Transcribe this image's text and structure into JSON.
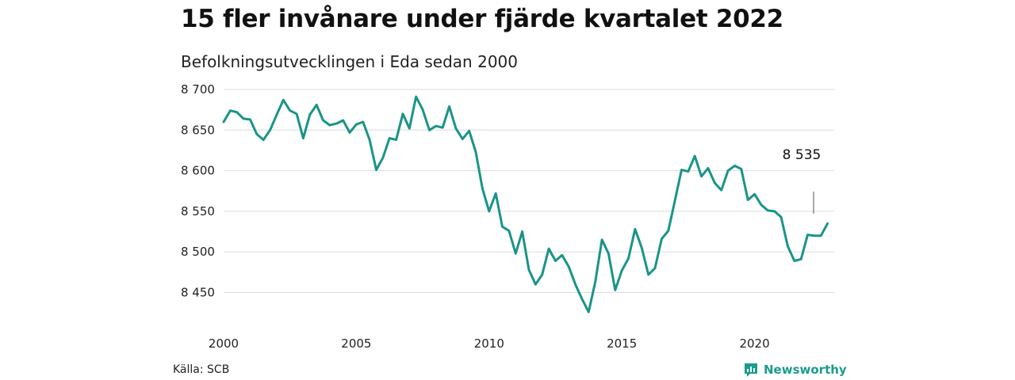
{
  "title": "15 fler invånare under fjärde kvartalet 2022",
  "subtitle": "Befolkningsutvecklingen i Eda sedan 2000",
  "source": "Källa: SCB",
  "brand": {
    "name": "Newsworthy",
    "icon": "newsworthy-logo-icon",
    "color": "#1a9c8c"
  },
  "chart_data": {
    "type": "line",
    "color": "#1a9488",
    "grid": true,
    "xlim": [
      2000,
      2023
    ],
    "ylim": [
      8430,
      8700
    ],
    "x_ticks": [
      2000,
      2005,
      2010,
      2015,
      2020
    ],
    "x_tick_labels": [
      "2000",
      "2005",
      "2010",
      "2015",
      "2020"
    ],
    "y_ticks": [
      8450,
      8500,
      8550,
      8600,
      8650,
      8700
    ],
    "y_tick_labels": [
      "8 450",
      "8 500",
      "8 550",
      "8 600",
      "8 650",
      "8 700"
    ],
    "end_label": "8 535",
    "series": [
      {
        "x": [
          "2000 Q1",
          "2000 Q2",
          "2000 Q3",
          "2000 Q4",
          "2001 Q1",
          "2001 Q2",
          "2001 Q3",
          "2001 Q4",
          "2002 Q1",
          "2002 Q2",
          "2002 Q3",
          "2002 Q4",
          "2003 Q1",
          "2003 Q2",
          "2003 Q3",
          "2003 Q4",
          "2004 Q1",
          "2004 Q2",
          "2004 Q3",
          "2004 Q4",
          "2005 Q1",
          "2005 Q2",
          "2005 Q3",
          "2005 Q4",
          "2006 Q1",
          "2006 Q2",
          "2006 Q3",
          "2006 Q4",
          "2007 Q1",
          "2007 Q2",
          "2007 Q3",
          "2007 Q4",
          "2008 Q1",
          "2008 Q2",
          "2008 Q3",
          "2008 Q4",
          "2009 Q1",
          "2009 Q2",
          "2009 Q3",
          "2009 Q4",
          "2010 Q1",
          "2010 Q2",
          "2010 Q3",
          "2010 Q4",
          "2011 Q1",
          "2011 Q2",
          "2011 Q3",
          "2011 Q4",
          "2012 Q1",
          "2012 Q2",
          "2012 Q3",
          "2012 Q4",
          "2013 Q1",
          "2013 Q2",
          "2013 Q3",
          "2013 Q4",
          "2014 Q1",
          "2014 Q2",
          "2014 Q3",
          "2014 Q4",
          "2015 Q1",
          "2015 Q2",
          "2015 Q3",
          "2015 Q4",
          "2016 Q1",
          "2016 Q2",
          "2016 Q3",
          "2016 Q4",
          "2017 Q1",
          "2017 Q2",
          "2017 Q3",
          "2017 Q4",
          "2018 Q1",
          "2018 Q2",
          "2018 Q3",
          "2018 Q4",
          "2019 Q1",
          "2019 Q2",
          "2019 Q3",
          "2019 Q4",
          "2020 Q1",
          "2020 Q2",
          "2020 Q3",
          "2020 Q4",
          "2021 Q1",
          "2021 Q2",
          "2021 Q3",
          "2021 Q4",
          "2022 Q1",
          "2022 Q2",
          "2022 Q3",
          "2022 Q4"
        ],
        "values": [
          8660,
          8674,
          8672,
          8664,
          8663,
          8645,
          8638,
          8650,
          8669,
          8687,
          8674,
          8670,
          8640,
          8669,
          8681,
          8662,
          8656,
          8658,
          8662,
          8647,
          8657,
          8660,
          8638,
          8601,
          8616,
          8640,
          8638,
          8670,
          8652,
          8691,
          8675,
          8650,
          8655,
          8653,
          8679,
          8652,
          8639,
          8649,
          8623,
          8578,
          8550,
          8572,
          8531,
          8526,
          8498,
          8525,
          8478,
          8460,
          8472,
          8504,
          8489,
          8496,
          8482,
          8460,
          8442,
          8426,
          8463,
          8515,
          8498,
          8453,
          8477,
          8492,
          8528,
          8505,
          8472,
          8480,
          8516,
          8526,
          8563,
          8601,
          8599,
          8618,
          8593,
          8603,
          8585,
          8576,
          8600,
          8606,
          8602,
          8564,
          8571,
          8558,
          8551,
          8550,
          8543,
          8507,
          8489,
          8491,
          8521,
          8520,
          8520,
          8535
        ]
      }
    ]
  }
}
